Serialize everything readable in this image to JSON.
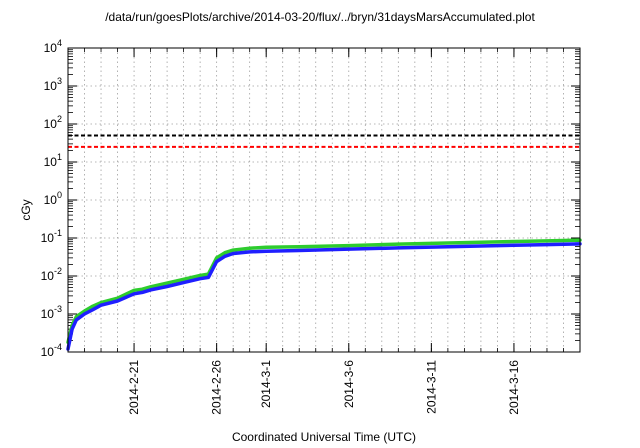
{
  "chart_data": {
    "type": "line",
    "title": "/data/run/goesPlots/archive/2014-03-20/flux/../bryn/31daysMarsAccumulated.plot",
    "xlabel": "Coordinated Universal Time (UTC)",
    "ylabel": "cGy",
    "yscale": "log",
    "ylim": [
      0.0001,
      10000
    ],
    "xlim": [
      "2014-02-17",
      "2014-03-20"
    ],
    "grid": true,
    "y_ticks": [
      {
        "base": "10",
        "exp": "-4",
        "value": 0.0001
      },
      {
        "base": "10",
        "exp": "-3",
        "value": 0.001
      },
      {
        "base": "10",
        "exp": "-2",
        "value": 0.01
      },
      {
        "base": "10",
        "exp": "-1",
        "value": 0.1
      },
      {
        "base": "10",
        "exp": "0",
        "value": 1
      },
      {
        "base": "10",
        "exp": "1",
        "value": 10
      },
      {
        "base": "10",
        "exp": "2",
        "value": 100
      },
      {
        "base": "10",
        "exp": "3",
        "value": 1000
      },
      {
        "base": "10",
        "exp": "4",
        "value": 10000
      }
    ],
    "x_ticks": [
      {
        "label": "2014-2-21",
        "date": "2014-02-21"
      },
      {
        "label": "2014-2-26",
        "date": "2014-02-26"
      },
      {
        "label": "2014-3-1",
        "date": "2014-03-01"
      },
      {
        "label": "2014-3-6",
        "date": "2014-03-06"
      },
      {
        "label": "2014-3-11",
        "date": "2014-03-11"
      },
      {
        "label": "2014-3-16",
        "date": "2014-03-16"
      }
    ],
    "reference_lines": [
      {
        "value": 50,
        "color": "#000000",
        "dash": true
      },
      {
        "value": 25,
        "color": "#ff0000",
        "dash": true
      }
    ],
    "series": [
      {
        "color": "#2ecc2e",
        "x": [
          "2014-02-17",
          "2014-02-17T06:00",
          "2014-02-17T12:00",
          "2014-02-18",
          "2014-02-18T12:00",
          "2014-02-19",
          "2014-02-20",
          "2014-02-21",
          "2014-02-21T12:00",
          "2014-02-22",
          "2014-02-23",
          "2014-02-24",
          "2014-02-25",
          "2014-02-25T12:00",
          "2014-02-26",
          "2014-02-26T12:00",
          "2014-02-27",
          "2014-02-28",
          "2014-03-01",
          "2014-03-03",
          "2014-03-06",
          "2014-03-09",
          "2014-03-12",
          "2014-03-15",
          "2014-03-18",
          "2014-03-20"
        ],
        "values": [
          0.00018,
          0.0005,
          0.00085,
          0.0012,
          0.0016,
          0.002,
          0.0026,
          0.0042,
          0.0045,
          0.0052,
          0.0065,
          0.0082,
          0.0103,
          0.0112,
          0.03,
          0.041,
          0.048,
          0.054,
          0.057,
          0.059,
          0.063,
          0.069,
          0.074,
          0.079,
          0.084,
          0.088
        ]
      },
      {
        "color": "#1f1fff",
        "x": [
          "2014-02-17",
          "2014-02-17T06:00",
          "2014-02-17T12:00",
          "2014-02-18",
          "2014-02-18T12:00",
          "2014-02-19",
          "2014-02-20",
          "2014-02-21",
          "2014-02-21T12:00",
          "2014-02-22",
          "2014-02-23",
          "2014-02-24",
          "2014-02-25",
          "2014-02-25T12:00",
          "2014-02-26",
          "2014-02-26T12:00",
          "2014-02-27",
          "2014-02-28",
          "2014-03-01",
          "2014-03-03",
          "2014-03-06",
          "2014-03-09",
          "2014-03-12",
          "2014-03-15",
          "2014-03-18",
          "2014-03-20"
        ],
        "values": [
          0.00012,
          0.0004,
          0.0007,
          0.001,
          0.0013,
          0.0017,
          0.0022,
          0.0034,
          0.0037,
          0.0043,
          0.0053,
          0.0067,
          0.0085,
          0.0092,
          0.024,
          0.033,
          0.039,
          0.043,
          0.045,
          0.047,
          0.051,
          0.055,
          0.059,
          0.063,
          0.067,
          0.07
        ]
      }
    ]
  }
}
